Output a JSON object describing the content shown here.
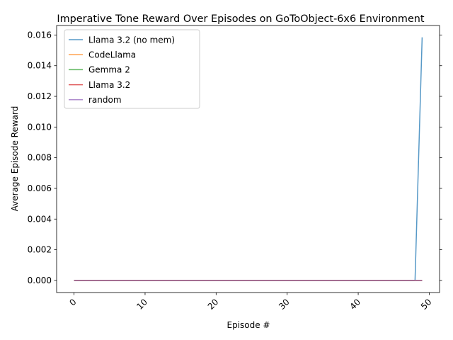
{
  "chart_data": {
    "type": "line",
    "title": "Imperative Tone Reward Over Episodes on GoToObject-6x6 Environment",
    "xlabel": "Episode #",
    "ylabel": "Average Episode Reward",
    "xlim": [
      -2.45,
      51.45
    ],
    "ylim": [
      -0.00079,
      0.01662
    ],
    "xticks": [
      0,
      10,
      20,
      30,
      40,
      50
    ],
    "xtick_labels": [
      "0",
      "10",
      "20",
      "30",
      "40",
      "50"
    ],
    "xtick_rotation": 45,
    "yticks": [
      0.0,
      0.002,
      0.004,
      0.006,
      0.008,
      0.01,
      0.012,
      0.014,
      0.016
    ],
    "ytick_labels": [
      "0.000",
      "0.002",
      "0.004",
      "0.006",
      "0.008",
      "0.010",
      "0.012",
      "0.014",
      "0.016"
    ],
    "grid": false,
    "legend_position": "top-left",
    "x": [
      0,
      1,
      2,
      3,
      4,
      5,
      6,
      7,
      8,
      9,
      10,
      11,
      12,
      13,
      14,
      15,
      16,
      17,
      18,
      19,
      20,
      21,
      22,
      23,
      24,
      25,
      26,
      27,
      28,
      29,
      30,
      31,
      32,
      33,
      34,
      35,
      36,
      37,
      38,
      39,
      40,
      41,
      42,
      43,
      44,
      45,
      46,
      47,
      48,
      49
    ],
    "series": [
      {
        "name": "Llama 3.2 (no mem)",
        "color": "#1f77b4",
        "values": [
          0,
          0,
          0,
          0,
          0,
          0,
          0,
          0,
          0,
          0,
          0,
          0,
          0,
          0,
          0,
          0,
          0,
          0,
          0,
          0,
          0,
          0,
          0,
          0,
          0,
          0,
          0,
          0,
          0,
          0,
          0,
          0,
          0,
          0,
          0,
          0,
          0,
          0,
          0,
          0,
          0,
          0,
          0,
          0,
          0,
          0,
          0,
          0,
          0,
          0.01585
        ]
      },
      {
        "name": "CodeLlama",
        "color": "#ff7f0e",
        "values": [
          0,
          0,
          0,
          0,
          0,
          0,
          0,
          0,
          0,
          0,
          0,
          0,
          0,
          0,
          0,
          0,
          0,
          0,
          0,
          0,
          0,
          0,
          0,
          0,
          0,
          0,
          0,
          0,
          0,
          0,
          0,
          0,
          0,
          0,
          0,
          0,
          0,
          0,
          0,
          0,
          0,
          0,
          0,
          0,
          0,
          0,
          0,
          0,
          0,
          0
        ]
      },
      {
        "name": "Gemma 2",
        "color": "#2ca02c",
        "values": [
          0,
          0,
          0,
          0,
          0,
          0,
          0,
          0,
          0,
          0,
          0,
          0,
          0,
          0,
          0,
          0,
          0,
          0,
          0,
          0,
          0,
          0,
          0,
          0,
          0,
          0,
          0,
          0,
          0,
          0,
          0,
          0,
          0,
          0,
          0,
          0,
          0,
          0,
          0,
          0,
          0,
          0,
          0,
          0,
          0,
          0,
          0,
          0,
          0,
          0
        ]
      },
      {
        "name": "Llama 3.2",
        "color": "#d62728",
        "values": [
          0,
          0,
          0,
          0,
          0,
          0,
          0,
          0,
          0,
          0,
          0,
          0,
          0,
          0,
          0,
          0,
          0,
          0,
          0,
          0,
          0,
          0,
          0,
          0,
          0,
          0,
          0,
          0,
          0,
          0,
          0,
          0,
          0,
          0,
          0,
          0,
          0,
          0,
          0,
          0,
          0,
          0,
          0,
          0,
          0,
          0,
          0,
          0,
          0,
          0
        ]
      },
      {
        "name": "random",
        "color": "#9467bd",
        "values": [
          0,
          0,
          0,
          0,
          0,
          0,
          0,
          0,
          0,
          0,
          0,
          0,
          0,
          0,
          0,
          0,
          0,
          0,
          0,
          0,
          0,
          0,
          0,
          0,
          0,
          0,
          0,
          0,
          0,
          0,
          0,
          0,
          0,
          0,
          0,
          0,
          0,
          0,
          0,
          0,
          0,
          0,
          0,
          0,
          0,
          0,
          0,
          0,
          0,
          0
        ]
      }
    ]
  }
}
